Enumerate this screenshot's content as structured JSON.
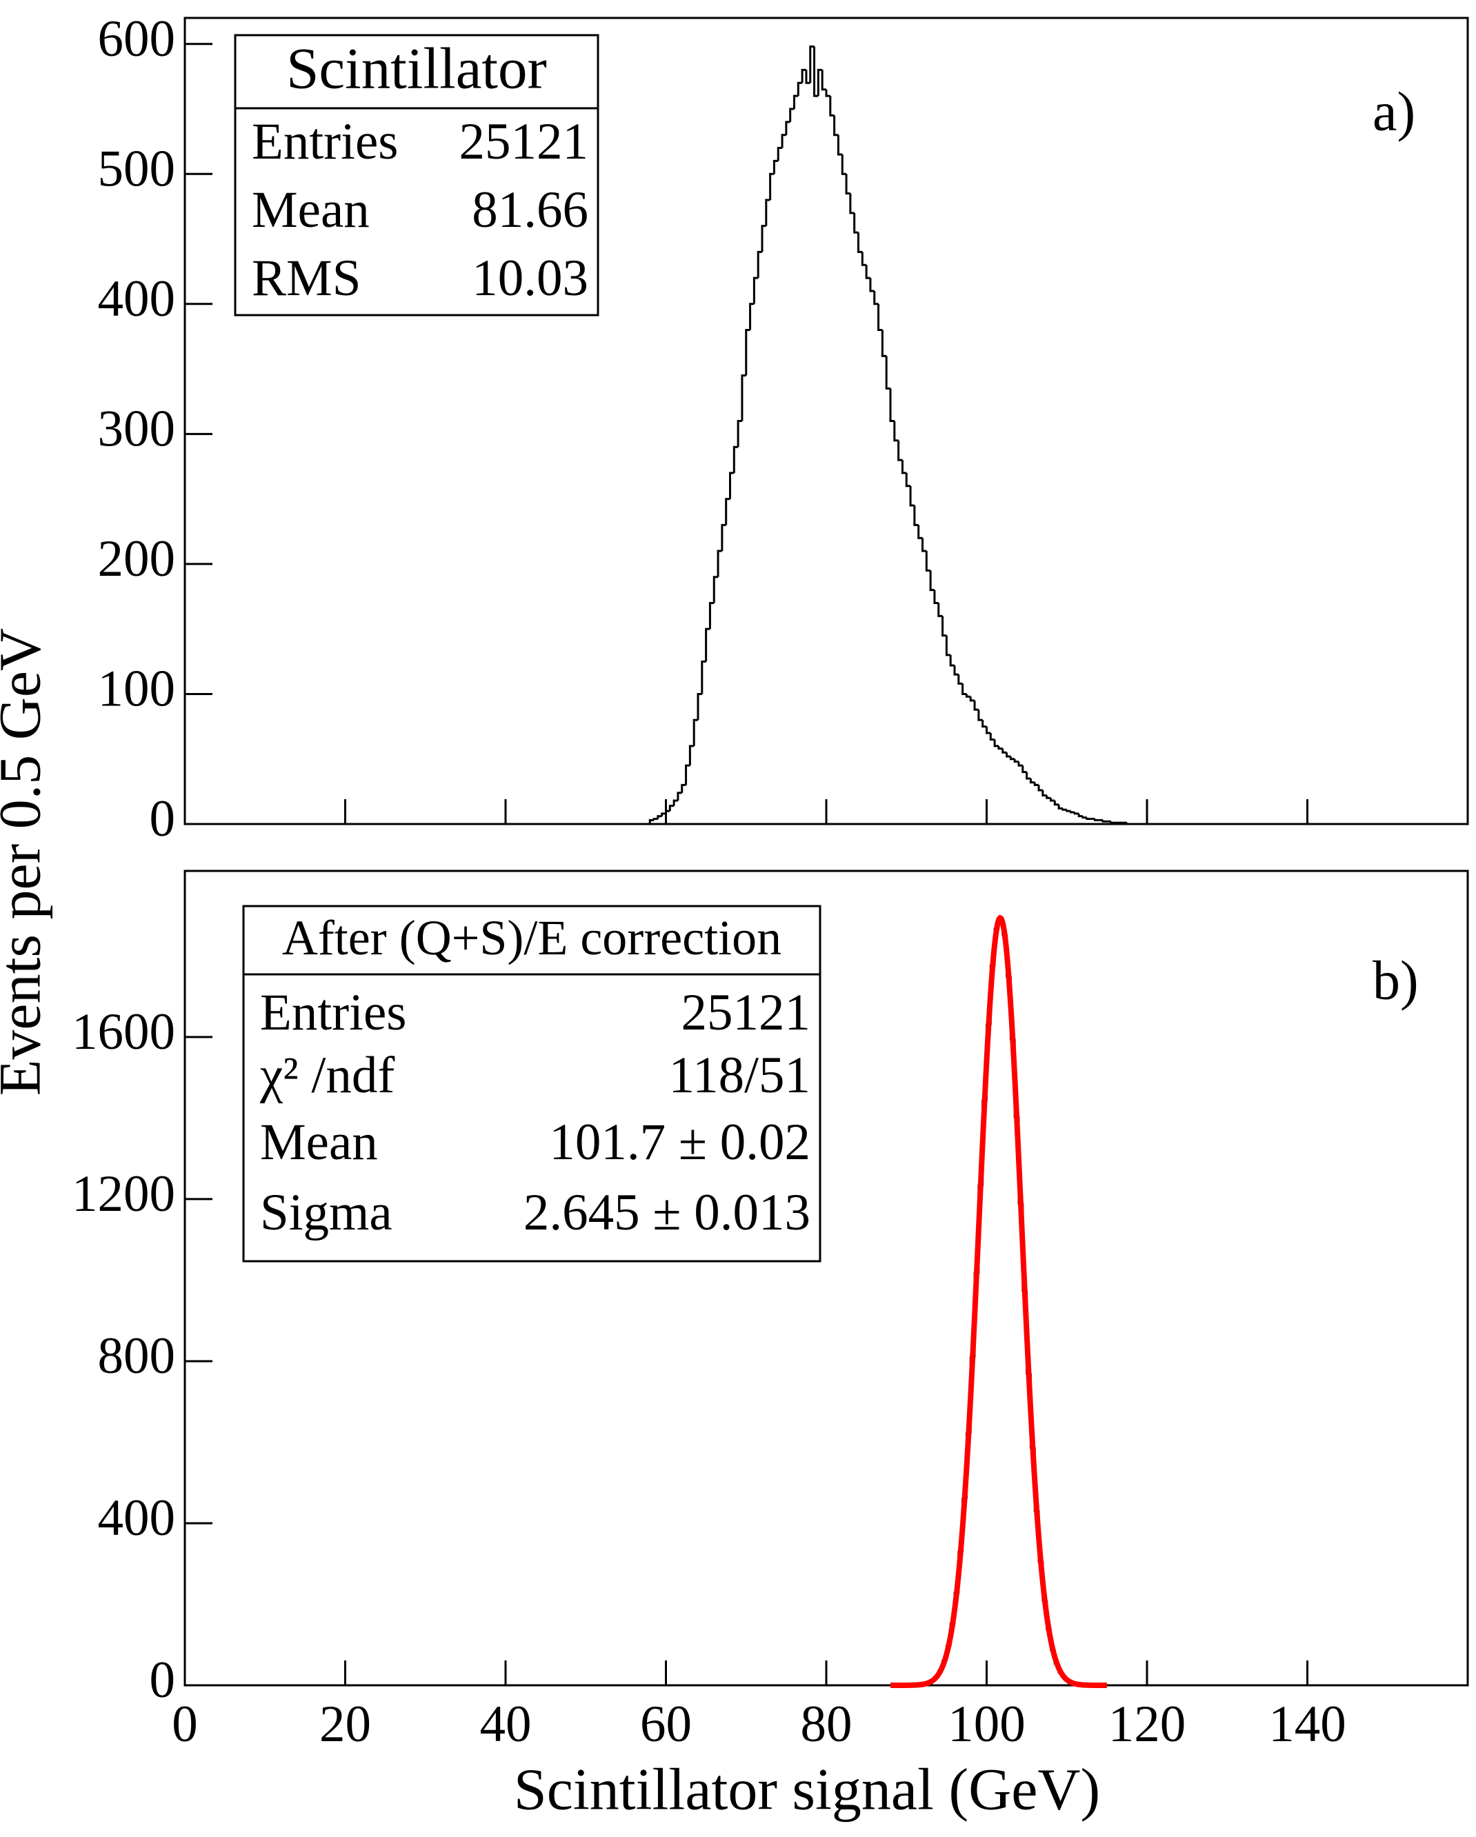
{
  "chart_data": [
    {
      "type": "histogram",
      "color": "#000000",
      "ylabel": "Events per 0.5 GeV",
      "annotation": "a)",
      "stats": {
        "title": "Scintillator",
        "title_color": "#0000ff",
        "rows": [
          [
            "Entries",
            "25121"
          ],
          [
            "Mean",
            "81.66"
          ],
          [
            "RMS",
            "10.03"
          ]
        ]
      },
      "xlim": [
        0,
        160
      ],
      "xticks": [
        0,
        20,
        40,
        60,
        80,
        100,
        120,
        140
      ],
      "ylim": [
        0,
        620
      ],
      "yticks": [
        0,
        100,
        200,
        300,
        400,
        500,
        600
      ],
      "bins": [
        58,
        58.5,
        59,
        59.5,
        60,
        60.5,
        61,
        61.5,
        62,
        62.5,
        63,
        63.5,
        64,
        64.5,
        65,
        65.5,
        66,
        66.5,
        67,
        67.5,
        68,
        68.5,
        69,
        69.5,
        70,
        70.5,
        71,
        71.5,
        72,
        72.5,
        73,
        73.5,
        74,
        74.5,
        75,
        75.5,
        76,
        76.5,
        77,
        77.5,
        78,
        78.5,
        79,
        79.5,
        80,
        80.5,
        81,
        81.5,
        82,
        82.5,
        83,
        83.5,
        84,
        84.5,
        85,
        85.5,
        86,
        86.5,
        87,
        87.5,
        88,
        88.5,
        89,
        89.5,
        90,
        90.5,
        91,
        91.5,
        92,
        92.5,
        93,
        93.5,
        94,
        94.5,
        95,
        95.5,
        96,
        96.5,
        97,
        97.5,
        98,
        98.5,
        99,
        99.5,
        100,
        100.5,
        101,
        101.5,
        102,
        102.5,
        103,
        103.5,
        104,
        104.5,
        105,
        105.5,
        106,
        106.5,
        107,
        107.5,
        108,
        108.5,
        109,
        109.5,
        110,
        110.5,
        111,
        111.5,
        112,
        112.5,
        113,
        113.5,
        114,
        114.5,
        115,
        115.5,
        116,
        116.5,
        117,
        117.5,
        118
      ],
      "values": [
        3,
        4,
        6,
        8,
        10,
        14,
        18,
        24,
        30,
        45,
        60,
        80,
        100,
        125,
        150,
        170,
        190,
        210,
        230,
        250,
        270,
        290,
        310,
        345,
        380,
        400,
        420,
        440,
        460,
        480,
        500,
        510,
        520,
        530,
        540,
        550,
        560,
        570,
        580,
        570,
        598,
        560,
        580,
        565,
        560,
        545,
        530,
        515,
        500,
        485,
        470,
        455,
        440,
        430,
        420,
        410,
        400,
        380,
        360,
        335,
        310,
        295,
        280,
        270,
        260,
        245,
        230,
        220,
        210,
        195,
        180,
        170,
        160,
        145,
        130,
        122,
        115,
        108,
        100,
        98,
        95,
        88,
        80,
        75,
        70,
        65,
        60,
        58,
        55,
        52,
        50,
        48,
        45,
        40,
        35,
        32,
        30,
        26,
        22,
        20,
        18,
        15,
        12,
        11,
        10,
        9,
        8,
        6,
        5,
        4,
        4,
        3,
        3,
        2,
        2,
        1,
        1,
        1,
        1,
        0
      ]
    },
    {
      "type": "histogram",
      "color": "#000000",
      "xlabel": "Scintillator signal (GeV)",
      "annotation": "b)",
      "stats": {
        "title": "After (Q+S)/E correction",
        "title_color": "#0000ff",
        "rows": [
          [
            "Entries",
            "25121"
          ],
          [
            "χ² /ndf",
            "118/51"
          ],
          [
            "Mean",
            "101.7 ± 0.02"
          ],
          [
            "Sigma",
            "2.645 ± 0.013"
          ]
        ]
      },
      "fit": {
        "color": "#ff0000",
        "amplitude": 1894,
        "mean": 101.7,
        "sigma": 2.645,
        "range": [
          88,
          115
        ]
      },
      "xlim": [
        0,
        160
      ],
      "xticks": [
        0,
        20,
        40,
        60,
        80,
        100,
        120,
        140
      ],
      "ylim": [
        0,
        2010
      ],
      "yticks": [
        0,
        400,
        800,
        1200,
        1600
      ],
      "bins": [
        92,
        92.5,
        93,
        93.5,
        94,
        94.5,
        95,
        95.5,
        96,
        96.5,
        97,
        97.5,
        98,
        98.5,
        99,
        99.5,
        100,
        100.5,
        101,
        101.5,
        102,
        102.5,
        103,
        103.5,
        104,
        104.5,
        105,
        105.5,
        106,
        106.5,
        107,
        107.5,
        108,
        108.5,
        109,
        109.5,
        110,
        110.5,
        111,
        111.5,
        112
      ],
      "values": [
        3,
        6,
        12,
        21,
        36,
        60,
        97,
        151,
        227,
        329,
        460,
        621,
        809,
        1017,
        1233,
        1443,
        1630,
        1776,
        1867,
        1894,
        1853,
        1750,
        1595,
        1403,
        1190,
        974,
        770,
        587,
        431,
        306,
        210,
        139,
        88,
        54,
        32,
        19,
        10,
        5,
        3,
        1
      ]
    }
  ]
}
